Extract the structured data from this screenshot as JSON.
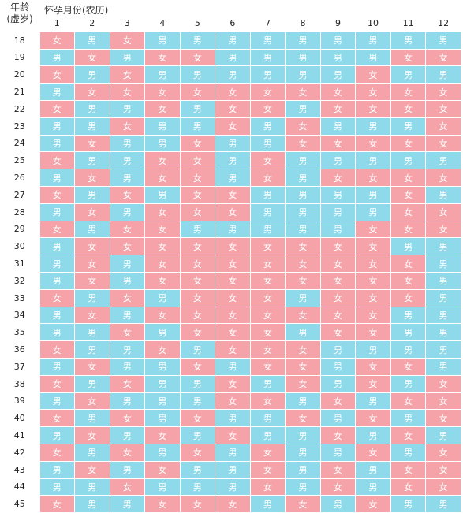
{
  "header": {
    "age_line1": "年龄",
    "age_line2": "(虚岁)",
    "month_title": "怀孕月份(农历)"
  },
  "labels": {
    "boy": "男",
    "girl": "女"
  },
  "colors": {
    "boy": "#8fdaea",
    "girl": "#f5a3a8"
  },
  "months": [
    "1",
    "2",
    "3",
    "4",
    "5",
    "6",
    "7",
    "8",
    "9",
    "10",
    "11",
    "12"
  ],
  "rows": [
    {
      "age": "18",
      "cells": [
        "女",
        "男",
        "女",
        "男",
        "男",
        "男",
        "男",
        "男",
        "男",
        "男",
        "男",
        "男"
      ]
    },
    {
      "age": "19",
      "cells": [
        "男",
        "女",
        "男",
        "女",
        "女",
        "男",
        "男",
        "男",
        "男",
        "男",
        "女",
        "女"
      ]
    },
    {
      "age": "20",
      "cells": [
        "女",
        "男",
        "女",
        "男",
        "男",
        "男",
        "男",
        "男",
        "男",
        "女",
        "男",
        "男"
      ]
    },
    {
      "age": "21",
      "cells": [
        "男",
        "女",
        "女",
        "女",
        "女",
        "女",
        "女",
        "女",
        "女",
        "女",
        "女",
        "女"
      ]
    },
    {
      "age": "22",
      "cells": [
        "女",
        "男",
        "男",
        "女",
        "男",
        "女",
        "女",
        "男",
        "女",
        "女",
        "女",
        "女"
      ]
    },
    {
      "age": "23",
      "cells": [
        "男",
        "男",
        "女",
        "男",
        "男",
        "女",
        "男",
        "女",
        "男",
        "男",
        "男",
        "女"
      ]
    },
    {
      "age": "24",
      "cells": [
        "男",
        "女",
        "男",
        "男",
        "女",
        "男",
        "男",
        "女",
        "女",
        "女",
        "女",
        "女"
      ]
    },
    {
      "age": "25",
      "cells": [
        "女",
        "男",
        "男",
        "女",
        "女",
        "男",
        "女",
        "男",
        "男",
        "男",
        "男",
        "男"
      ]
    },
    {
      "age": "26",
      "cells": [
        "男",
        "女",
        "男",
        "女",
        "女",
        "男",
        "女",
        "男",
        "女",
        "女",
        "女",
        "女"
      ]
    },
    {
      "age": "27",
      "cells": [
        "女",
        "男",
        "女",
        "男",
        "女",
        "女",
        "男",
        "男",
        "男",
        "男",
        "女",
        "男"
      ]
    },
    {
      "age": "28",
      "cells": [
        "男",
        "女",
        "男",
        "女",
        "女",
        "女",
        "男",
        "男",
        "男",
        "男",
        "女",
        "女"
      ]
    },
    {
      "age": "29",
      "cells": [
        "女",
        "男",
        "女",
        "女",
        "男",
        "男",
        "男",
        "男",
        "男",
        "女",
        "女",
        "女"
      ]
    },
    {
      "age": "30",
      "cells": [
        "男",
        "女",
        "女",
        "女",
        "女",
        "女",
        "女",
        "女",
        "女",
        "女",
        "男",
        "男"
      ]
    },
    {
      "age": "31",
      "cells": [
        "男",
        "女",
        "男",
        "女",
        "女",
        "女",
        "女",
        "女",
        "女",
        "女",
        "女",
        "男"
      ]
    },
    {
      "age": "32",
      "cells": [
        "男",
        "女",
        "男",
        "女",
        "女",
        "女",
        "女",
        "女",
        "女",
        "女",
        "女",
        "男"
      ]
    },
    {
      "age": "33",
      "cells": [
        "女",
        "男",
        "女",
        "男",
        "女",
        "女",
        "女",
        "男",
        "女",
        "女",
        "女",
        "男"
      ]
    },
    {
      "age": "34",
      "cells": [
        "男",
        "女",
        "男",
        "女",
        "女",
        "女",
        "女",
        "女",
        "女",
        "女",
        "男",
        "男"
      ]
    },
    {
      "age": "35",
      "cells": [
        "男",
        "男",
        "女",
        "男",
        "女",
        "女",
        "女",
        "男",
        "女",
        "女",
        "男",
        "男"
      ]
    },
    {
      "age": "36",
      "cells": [
        "女",
        "男",
        "男",
        "女",
        "男",
        "女",
        "女",
        "女",
        "男",
        "男",
        "男",
        "男"
      ]
    },
    {
      "age": "37",
      "cells": [
        "男",
        "女",
        "男",
        "男",
        "女",
        "男",
        "女",
        "女",
        "男",
        "女",
        "女",
        "男"
      ]
    },
    {
      "age": "38",
      "cells": [
        "女",
        "男",
        "女",
        "男",
        "男",
        "女",
        "男",
        "女",
        "男",
        "女",
        "男",
        "女"
      ]
    },
    {
      "age": "39",
      "cells": [
        "男",
        "女",
        "男",
        "男",
        "男",
        "女",
        "女",
        "男",
        "女",
        "男",
        "女",
        "女"
      ]
    },
    {
      "age": "40",
      "cells": [
        "女",
        "男",
        "女",
        "男",
        "女",
        "男",
        "男",
        "女",
        "男",
        "女",
        "男",
        "女"
      ]
    },
    {
      "age": "41",
      "cells": [
        "男",
        "女",
        "男",
        "女",
        "男",
        "女",
        "男",
        "男",
        "女",
        "男",
        "女",
        "男"
      ]
    },
    {
      "age": "42",
      "cells": [
        "女",
        "男",
        "女",
        "男",
        "女",
        "男",
        "女",
        "男",
        "男",
        "女",
        "男",
        "女"
      ]
    },
    {
      "age": "43",
      "cells": [
        "男",
        "女",
        "男",
        "女",
        "男",
        "男",
        "女",
        "男",
        "女",
        "男",
        "女",
        "女"
      ]
    },
    {
      "age": "44",
      "cells": [
        "男",
        "男",
        "女",
        "男",
        "男",
        "男",
        "女",
        "男",
        "女",
        "男",
        "女",
        "女"
      ]
    },
    {
      "age": "45",
      "cells": [
        "女",
        "男",
        "男",
        "女",
        "女",
        "女",
        "男",
        "女",
        "男",
        "女",
        "男",
        "男"
      ]
    }
  ]
}
